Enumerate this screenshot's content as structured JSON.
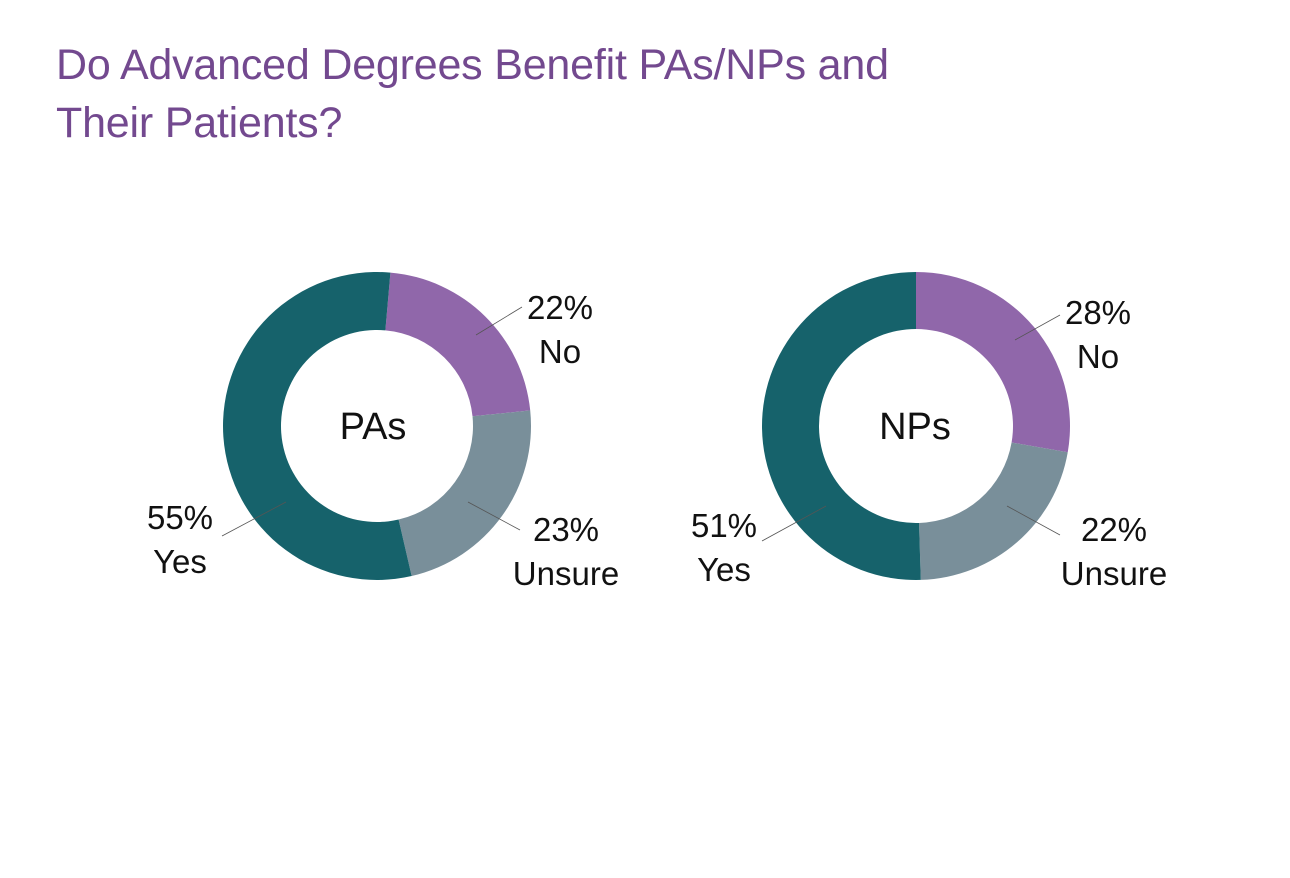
{
  "title": {
    "line1": "Do Advanced Degrees Benefit PAs/NPs and",
    "line2": "Their Patients?"
  },
  "colors": {
    "title": "#73498f",
    "yes": "#16626b",
    "no": "#9067aa",
    "unsure": "#798f9a",
    "text": "#111111",
    "leader": "#555555"
  },
  "chart_data": [
    {
      "type": "pie",
      "subtype": "donut",
      "title": "Do Advanced Degrees Benefit PAs/NPs and Their Patients?",
      "center_label": "PAs",
      "categories": [
        "No",
        "Unsure",
        "Yes"
      ],
      "values": [
        22,
        23,
        55
      ],
      "value_labels": [
        "22%",
        "23%",
        "55%"
      ],
      "printed_total": 100,
      "colors": [
        "#9067aa",
        "#798f9a",
        "#16626b"
      ]
    },
    {
      "type": "pie",
      "subtype": "donut",
      "title": "Do Advanced Degrees Benefit PAs/NPs and Their Patients?",
      "center_label": "NPs",
      "categories": [
        "No",
        "Unsure",
        "Yes"
      ],
      "values": [
        28,
        22,
        51
      ],
      "value_labels": [
        "28%",
        "22%",
        "51%"
      ],
      "printed_total": 101,
      "note": "Printed percentages sum to 101% (likely rounding in source); arcs are drawn proportionally to the total.",
      "colors": [
        "#9067aa",
        "#798f9a",
        "#16626b"
      ]
    }
  ],
  "charts": {
    "pas": {
      "center": "PAs",
      "no_pct": "22%",
      "no_label": "No",
      "unsure_pct": "23%",
      "unsure_label": "Unsure",
      "yes_pct": "55%",
      "yes_label": "Yes"
    },
    "nps": {
      "center": "NPs",
      "no_pct": "28%",
      "no_label": "No",
      "unsure_pct": "22%",
      "unsure_label": "Unsure",
      "yes_pct": "51%",
      "yes_label": "Yes"
    }
  }
}
